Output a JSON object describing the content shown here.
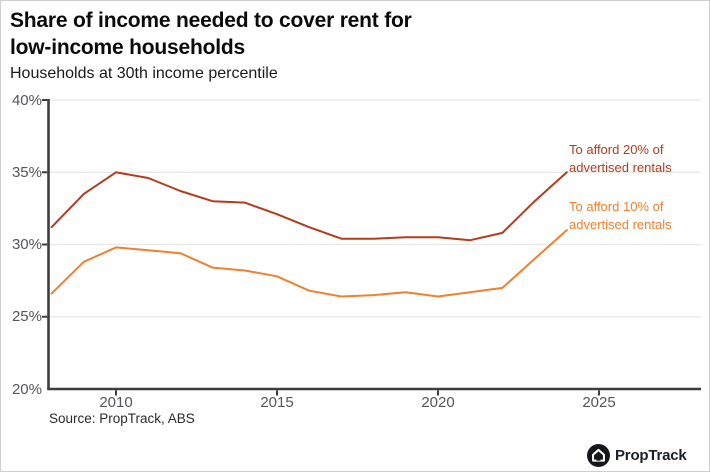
{
  "header": {
    "title_line1": "Share of income needed to cover rent for",
    "title_line2": "low-income households",
    "subtitle": "Households at 30th income percentile"
  },
  "footer": {
    "source": "Source: PropTrack, ABS",
    "logo_text": "PropTrack",
    "logo_icon": "house-icon"
  },
  "chart_data": {
    "type": "line",
    "x": [
      2008,
      2009,
      2010,
      2011,
      2012,
      2013,
      2014,
      2015,
      2016,
      2017,
      2018,
      2019,
      2020,
      2021,
      2022,
      2023,
      2024
    ],
    "series": [
      {
        "name": "To afford 20% of advertised rentals",
        "label_line1": "To afford 20% of",
        "label_line2": "advertised rentals",
        "color": "#b23c1d",
        "values": [
          31.2,
          33.5,
          35.0,
          34.6,
          33.7,
          33.0,
          32.9,
          32.1,
          31.2,
          30.4,
          30.4,
          30.5,
          30.5,
          30.3,
          30.8,
          33.0,
          35.0
        ]
      },
      {
        "name": "To afford 10% of advertised rentals",
        "label_line1": "To afford 10% of",
        "label_line2": "advertised rentals",
        "color": "#ef8130",
        "values": [
          26.6,
          28.8,
          29.8,
          29.6,
          29.4,
          28.4,
          28.2,
          27.8,
          26.8,
          26.4,
          26.5,
          26.7,
          26.4,
          26.7,
          27.0,
          29.0,
          31.0
        ]
      }
    ],
    "title": "Share of income needed to cover rent for low-income households",
    "subtitle": "Households at 30th income percentile",
    "xlabel": "",
    "ylabel": "",
    "ylim": [
      20,
      40
    ],
    "xlim": [
      2007.9,
      2028.2
    ],
    "yticks": [
      20,
      25,
      30,
      35,
      40
    ],
    "ytick_labels": [
      "20%",
      "25%",
      "30%",
      "35%",
      "40%"
    ],
    "xticks": [
      2010,
      2015,
      2020,
      2025
    ],
    "xtick_labels": [
      "2010",
      "2015",
      "2020",
      "2025"
    ],
    "grid": "horizontal gridlines at y ticks",
    "legend_position": "inline labels right of line endpoints"
  },
  "colors": {
    "series_20pct": "#b23c1d",
    "series_10pct": "#ef8130",
    "axis": "#3d3d3d",
    "gridline": "#e7e7e7",
    "tick_label": "#55565a",
    "background": "#ffffff",
    "border": "#cfcfcf",
    "logo_circle": "#15171d"
  }
}
